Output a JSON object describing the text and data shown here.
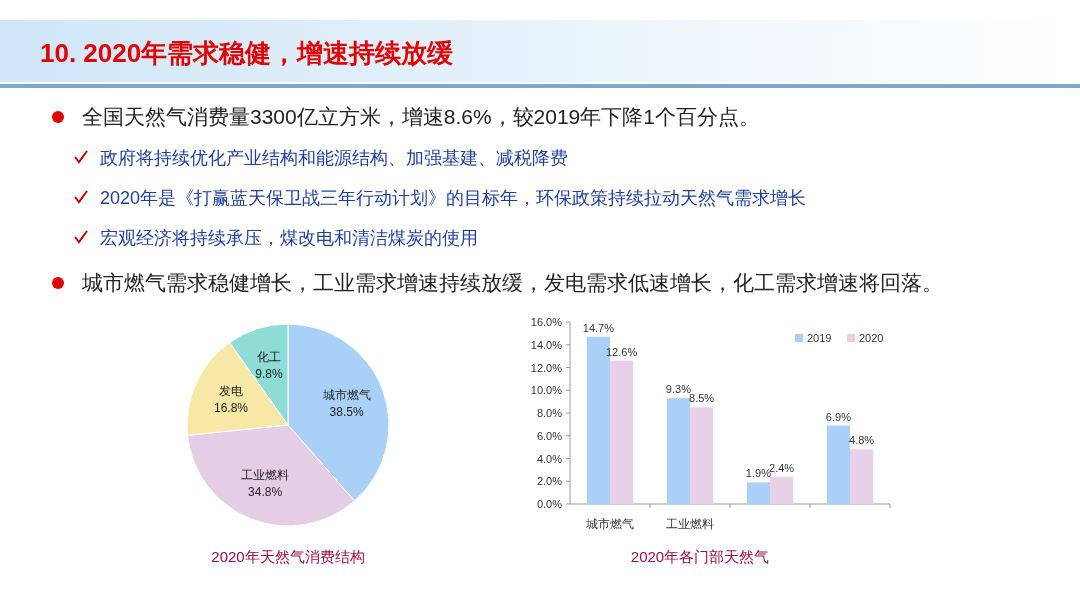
{
  "chart_data": [
    {
      "type": "other",
      "title": "10. 2020年需求稳健，增速持续放缓",
      "annotations": [
        "全国天然气消费量3300亿立方米，增速8.6%，较2019年下降1个百分点。",
        "政府将持续优化产业结构和能源结构、加强基建、减税降费",
        "2020年是《打赢蓝天保卫战三年行动计划》的目标年，环保政策持续拉动天然气需求增长",
        "宏观经济将持续承压，煤改电和清洁煤炭的使用",
        "城市燃气需求稳健增长，工业需求增速持续放缓，发电需求低速增长，化工需求增速将回落。"
      ]
    },
    {
      "type": "pie",
      "categories": [
        "城市燃气",
        "工业燃料",
        "发电",
        "化工"
      ],
      "values": [
        38.5,
        34.8,
        16.8,
        9.8
      ],
      "colors": [
        "#a9d1f7",
        "#e6cde6",
        "#f8e8a8",
        "#8edcd6"
      ],
      "value_labels": [
        "38.5%",
        "34.8%",
        "16.8%",
        "9.8%"
      ],
      "annotations": [
        "2020年天然气消费结构"
      ]
    },
    {
      "type": "bar",
      "categories": [
        "城市燃气",
        "工业燃料",
        null,
        null
      ],
      "series": [
        {
          "name": "2019",
          "color": "#a9d1f7",
          "values": [
            14.7,
            9.3,
            1.9,
            6.9
          ],
          "value_labels": [
            "14.7%",
            "9.3%",
            "1.9%",
            "6.9%"
          ]
        },
        {
          "name": "2020",
          "color": "#e8d0e8",
          "values": [
            12.6,
            8.5,
            2.4,
            4.8
          ],
          "value_labels": [
            "12.6%",
            "8.5%",
            "2.4%",
            "4.8%"
          ]
        }
      ],
      "ylim": [
        0,
        16
      ],
      "yticks": [
        {
          "value": 0,
          "label": "0.0%"
        },
        {
          "value": 2,
          "label": "2.0%"
        },
        {
          "value": 4,
          "label": "4.0%"
        },
        {
          "value": 6,
          "label": "6.0%"
        },
        {
          "value": 8,
          "label": "8.0%"
        },
        {
          "value": 10,
          "label": "10.0%"
        },
        {
          "value": 12,
          "label": "12.0%"
        },
        {
          "value": 14,
          "label": "14.0%"
        },
        {
          "value": 16,
          "label": "16.0%"
        }
      ],
      "legend": "top right",
      "annotations": [
        "2020年各门部天然气"
      ]
    }
  ]
}
